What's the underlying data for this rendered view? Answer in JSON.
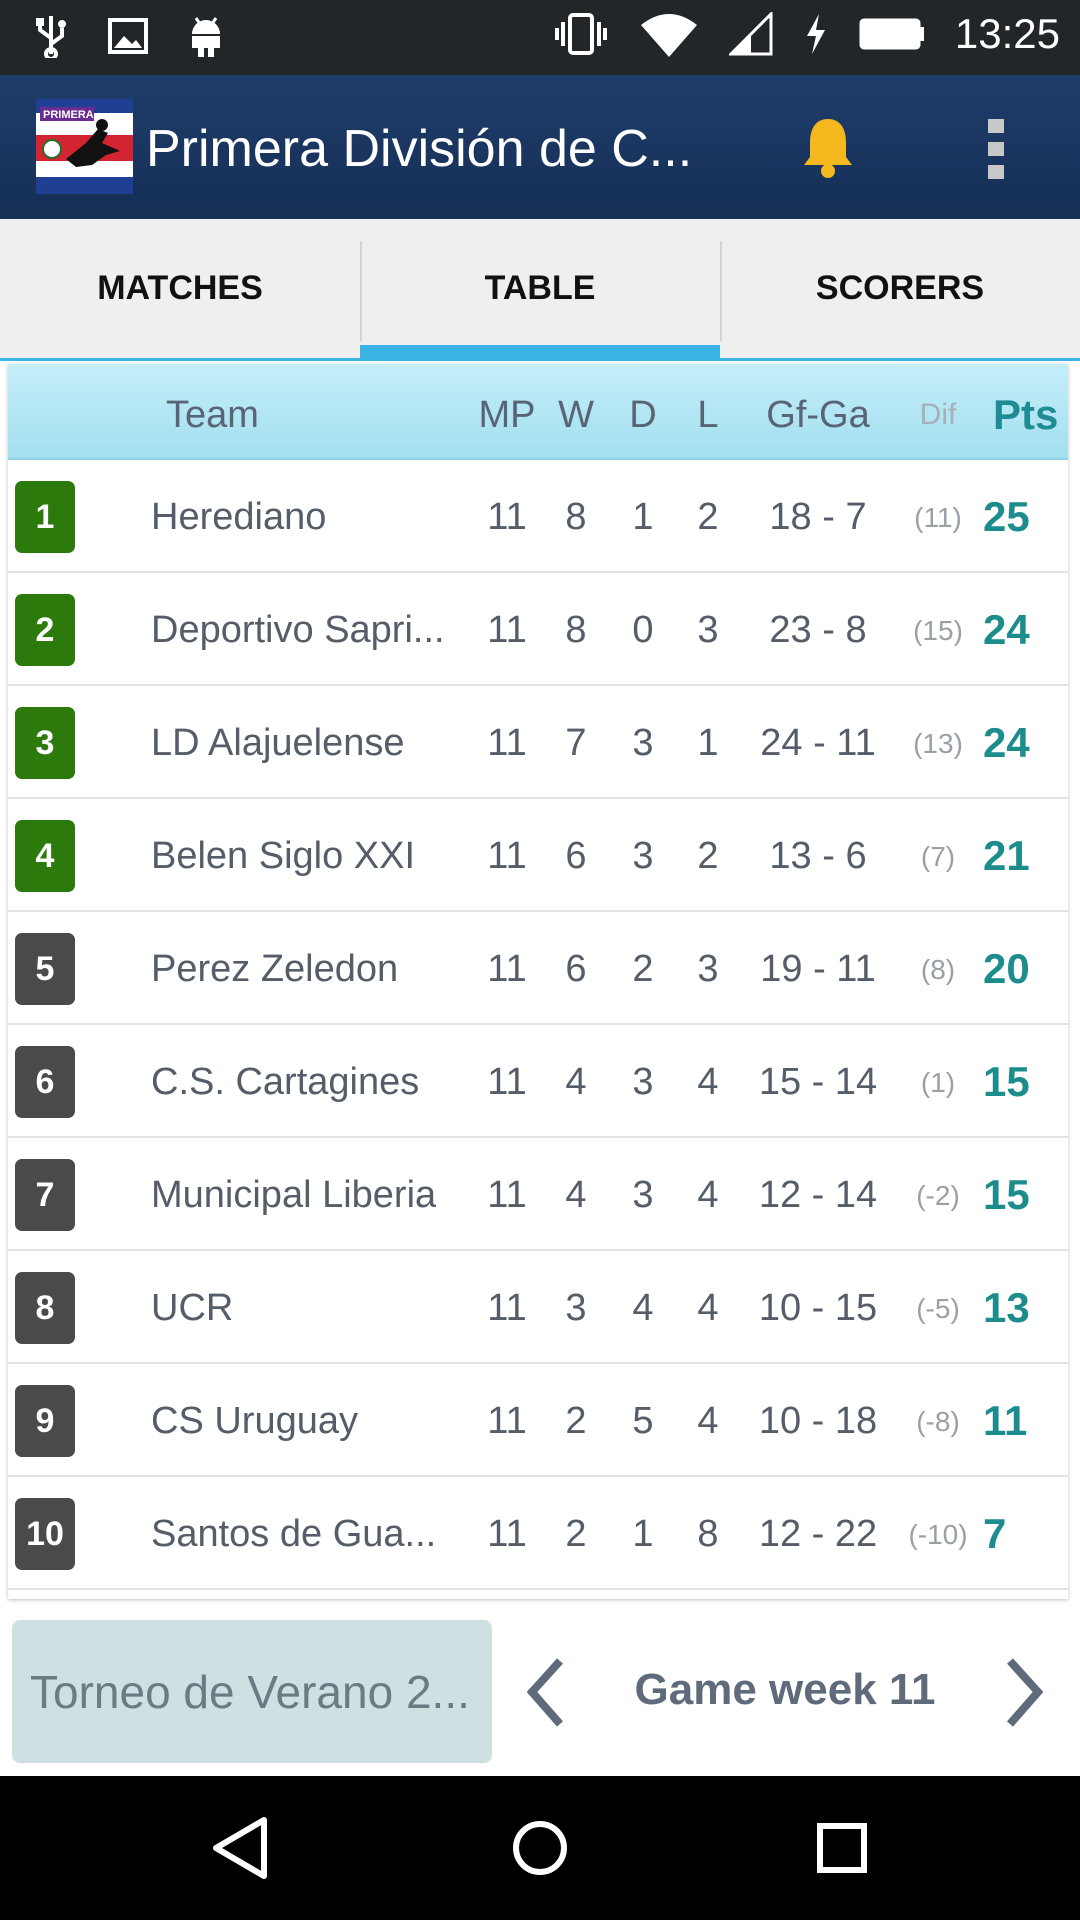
{
  "status_bar": {
    "time": "13:25",
    "icons": [
      "usb-icon",
      "image-icon",
      "android-icon",
      "vibrate-icon",
      "wifi-icon",
      "signal-icon",
      "charging-icon",
      "battery-icon"
    ]
  },
  "app_bar": {
    "title": "Primera División de C...",
    "logo_text": "PRIMERA",
    "icons": [
      "bell-icon",
      "overflow-menu-icon"
    ],
    "colors": {
      "background": "#1a3760",
      "bell": "#f6b81f"
    }
  },
  "tabs": [
    {
      "label": "MATCHES",
      "active": false
    },
    {
      "label": "TABLE",
      "active": true
    },
    {
      "label": "SCORERS",
      "active": false
    }
  ],
  "table": {
    "headers": {
      "team": "Team",
      "mp": "MP",
      "w": "W",
      "d": "D",
      "l": "L",
      "gfga": "Gf-Ga",
      "dif": "Dif",
      "pts": "Pts"
    },
    "rows": [
      {
        "pos": "1",
        "team": "Herediano",
        "mp": "11",
        "w": "8",
        "d": "1",
        "l": "2",
        "gfga": "18 - 7",
        "dif": "(11)",
        "pts": "25",
        "zone": "green"
      },
      {
        "pos": "2",
        "team": "Deportivo Sapri...",
        "mp": "11",
        "w": "8",
        "d": "0",
        "l": "3",
        "gfga": "23 - 8",
        "dif": "(15)",
        "pts": "24",
        "zone": "green"
      },
      {
        "pos": "3",
        "team": "LD Alajuelense",
        "mp": "11",
        "w": "7",
        "d": "3",
        "l": "1",
        "gfga": "24 - 11",
        "dif": "(13)",
        "pts": "24",
        "zone": "green"
      },
      {
        "pos": "4",
        "team": "Belen Siglo XXI",
        "mp": "11",
        "w": "6",
        "d": "3",
        "l": "2",
        "gfga": "13 - 6",
        "dif": "(7)",
        "pts": "21",
        "zone": "green"
      },
      {
        "pos": "5",
        "team": "Perez Zeledon",
        "mp": "11",
        "w": "6",
        "d": "2",
        "l": "3",
        "gfga": "19 - 11",
        "dif": "(8)",
        "pts": "20",
        "zone": "gray"
      },
      {
        "pos": "6",
        "team": "C.S. Cartagines",
        "mp": "11",
        "w": "4",
        "d": "3",
        "l": "4",
        "gfga": "15 - 14",
        "dif": "(1)",
        "pts": "15",
        "zone": "gray"
      },
      {
        "pos": "7",
        "team": "Municipal Liberia",
        "mp": "11",
        "w": "4",
        "d": "3",
        "l": "4",
        "gfga": "12 - 14",
        "dif": "(-2)",
        "pts": "15",
        "zone": "gray"
      },
      {
        "pos": "8",
        "team": "UCR",
        "mp": "11",
        "w": "3",
        "d": "4",
        "l": "4",
        "gfga": "10 - 15",
        "dif": "(-5)",
        "pts": "13",
        "zone": "gray"
      },
      {
        "pos": "9",
        "team": "CS Uruguay",
        "mp": "11",
        "w": "2",
        "d": "5",
        "l": "4",
        "gfga": "10 - 18",
        "dif": "(-8)",
        "pts": "11",
        "zone": "gray"
      },
      {
        "pos": "10",
        "team": "Santos de Gua...",
        "mp": "11",
        "w": "2",
        "d": "1",
        "l": "8",
        "gfga": "12 - 22",
        "dif": "(-10)",
        "pts": "7",
        "zone": "gray"
      }
    ],
    "colors": {
      "green_zone": "#2b7a0b",
      "gray_zone": "#4a4a4a",
      "points": "#1c8c8c"
    }
  },
  "bottom": {
    "tournament": "Torneo de Verano 2...",
    "gameweek": "Game week 11",
    "icons": [
      "chevron-left-icon",
      "chevron-right-icon"
    ]
  },
  "nav_bar": {
    "icons": [
      "back-icon",
      "home-icon",
      "recents-icon"
    ]
  }
}
